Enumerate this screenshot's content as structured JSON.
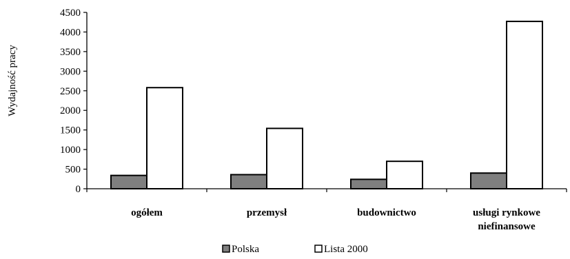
{
  "chart_data": {
    "type": "bar",
    "title": "",
    "xlabel": "",
    "ylabel": "Wydajność pracy",
    "ylim": [
      0,
      4500
    ],
    "yticks": [
      0,
      500,
      1000,
      1500,
      2000,
      2500,
      3000,
      3500,
      4000,
      4500
    ],
    "categories": [
      [
        "ogółem"
      ],
      [
        "przemysł"
      ],
      [
        "budownictwo"
      ],
      [
        "usługi rynkowe",
        "niefinansowe"
      ]
    ],
    "series": [
      {
        "name": "Polska",
        "color": "#7f7f7f",
        "values": [
          340,
          360,
          240,
          400
        ]
      },
      {
        "name": "Lista 2000",
        "color": "#ffffff",
        "values": [
          2580,
          1540,
          700,
          4270
        ]
      }
    ],
    "grid": false,
    "legend_position": "bottom"
  }
}
